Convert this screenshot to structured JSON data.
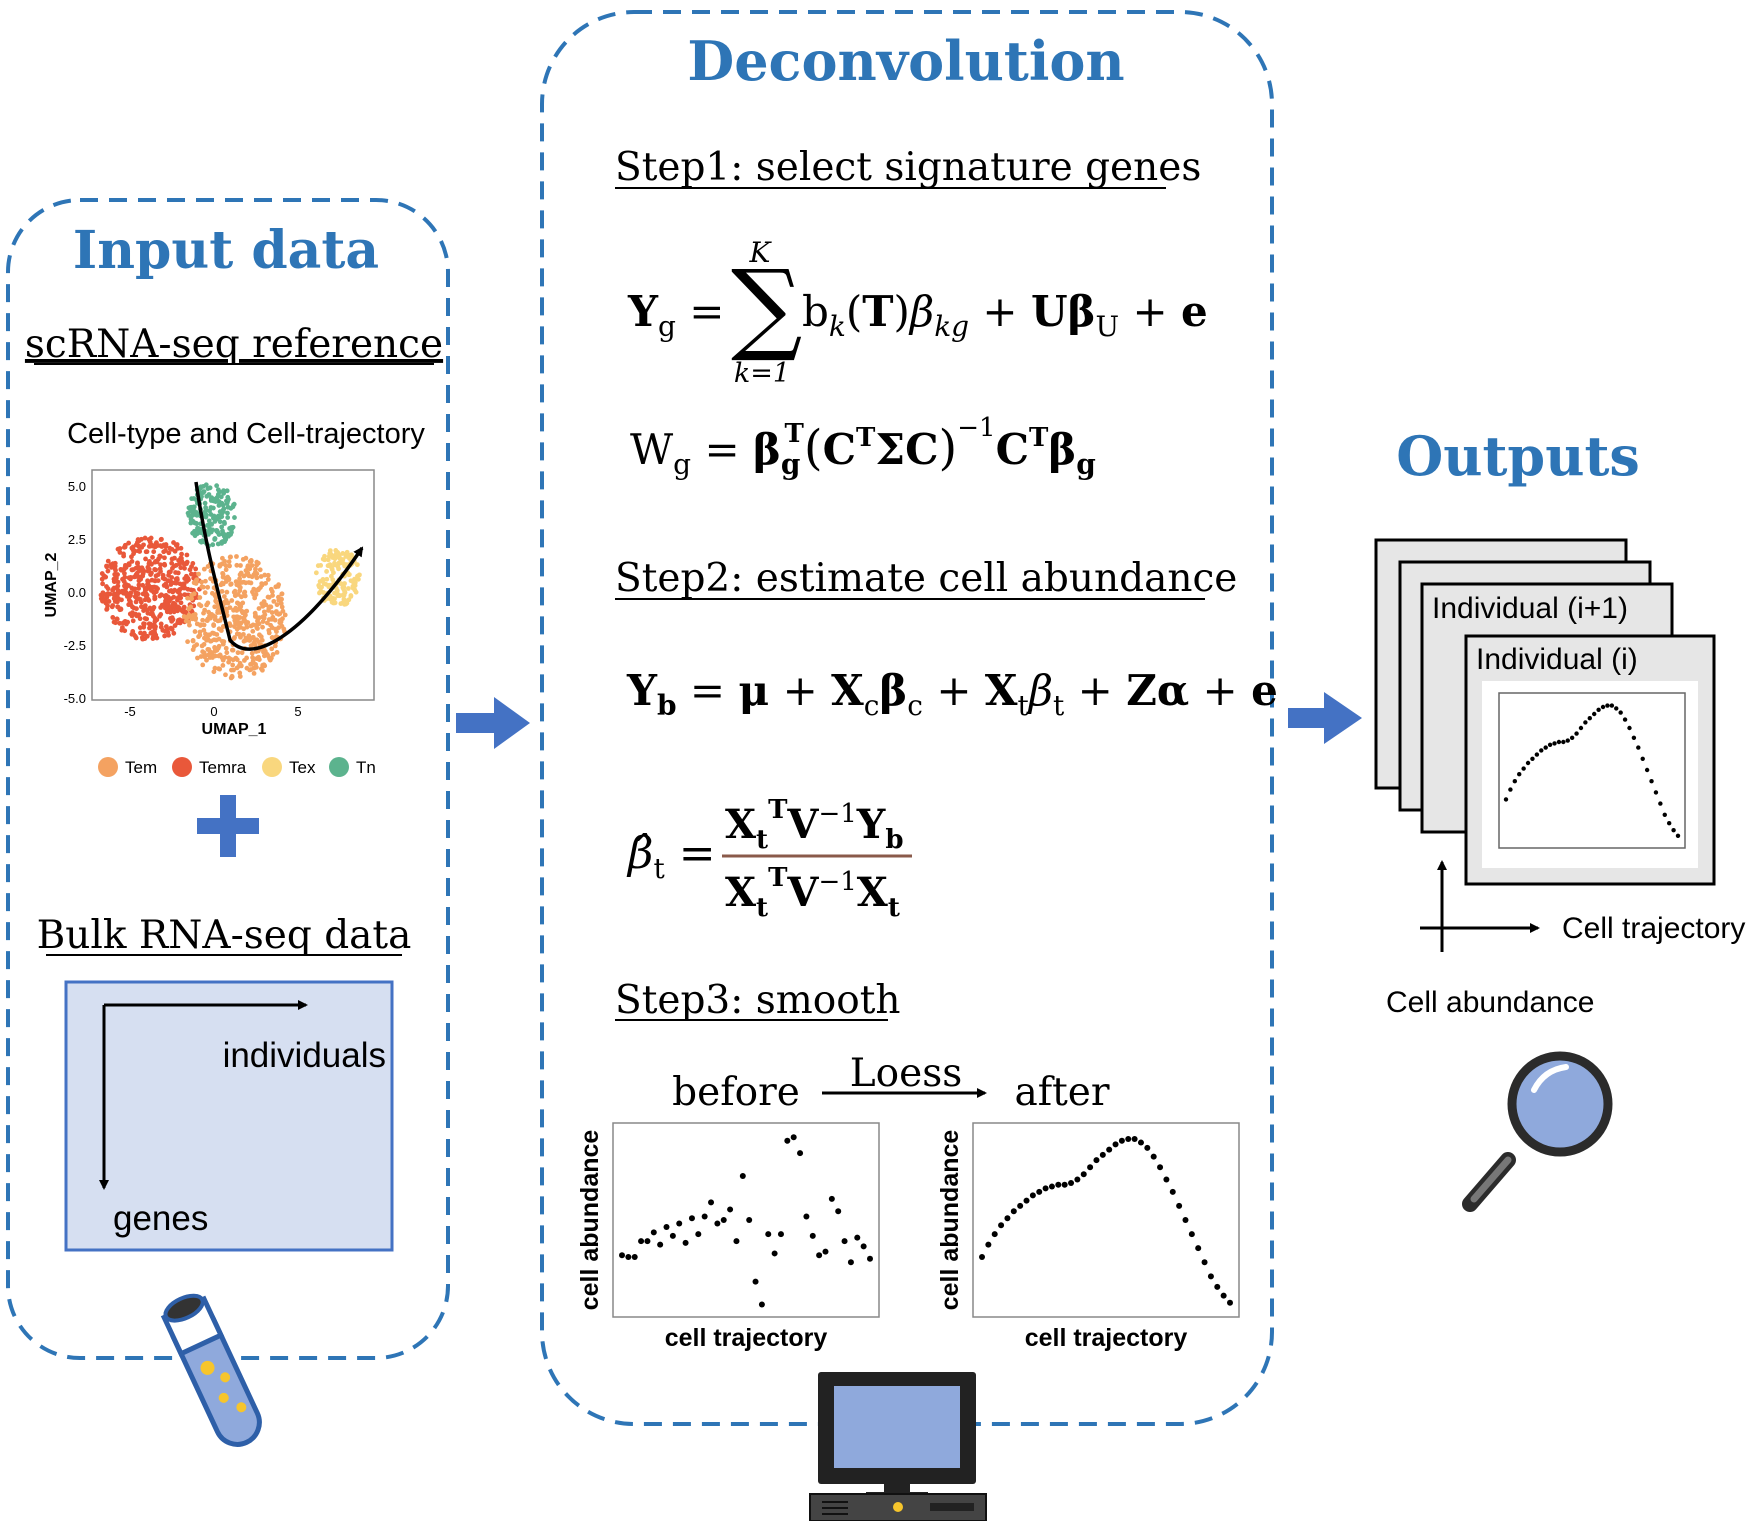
{
  "input_panel": {
    "title": "Input data",
    "sc_heading": "scRNA-seq reference",
    "umap": {
      "caption": "Cell-type and Cell-trajectory",
      "xlabel": "UMAP_1",
      "ylabel": "UMAP_2",
      "xticks": [
        "-5",
        "0",
        "5"
      ],
      "yticks": [
        "5.0",
        "2.5",
        "0.0",
        "-2.5",
        "-5.0"
      ],
      "legend": [
        {
          "label": "Tem",
          "color": "#f4a261"
        },
        {
          "label": "Temra",
          "color": "#e9583a"
        },
        {
          "label": "Tex",
          "color": "#f9d77e"
        },
        {
          "label": "Tn",
          "color": "#5cb38e"
        }
      ]
    },
    "plus_symbol": "+",
    "bulk_heading": "Bulk RNA-seq data",
    "bulk_box": {
      "cols_label": "individuals",
      "rows_label": "genes"
    }
  },
  "deconv_panel": {
    "title": "Deconvolution",
    "step1": {
      "heading": "Step1: select signature genes",
      "eq1": {
        "lhs": "Y",
        "lhs_sub": "g",
        "sum_top": "K",
        "sum_bottom": "k=1",
        "rhs": "b_k(T)β_kg + Uβ_U + e"
      },
      "eq2": {
        "lhs": "W",
        "lhs_sub": "g",
        "rhs": "β_g^T(C^TΣC)^-1 C^T β_g"
      }
    },
    "step2": {
      "heading": "Step2: estimate cell abundance",
      "eq3": "Y_b = μ + X_c β_c + X_t β_t + Zα + e",
      "eq4": "β̂_t = X_t^T V^-1 Y_b / X_t^T V^-1 X_t"
    },
    "step3": {
      "heading": "Step3: smooth",
      "before_label": "before",
      "method_label": "Loess",
      "after_label": "after",
      "plot_xlabel": "cell trajectory",
      "plot_ylabel": "cell abundance"
    }
  },
  "outputs_panel": {
    "title": "Outputs",
    "card_back_label": "Individual (i+1)",
    "card_front_label": "Individual (i)",
    "x_axis_label": "Cell trajectory",
    "y_axis_label": "Cell abundance"
  },
  "colors": {
    "accent_blue": "#2e75b6",
    "arrow_blue": "#4472c4",
    "bulk_fill": "#d6dff1",
    "card_fill": "#e6e6e6"
  },
  "icons": [
    "test-tube-icon",
    "computer-icon",
    "magnifier-icon",
    "plus-icon"
  ],
  "chart_data": [
    {
      "type": "scatter",
      "title": "before",
      "xlabel": "cell trajectory",
      "ylabel": "cell abundance",
      "x": [
        1,
        2,
        3,
        4,
        5,
        6,
        7,
        8,
        9,
        10,
        11,
        12,
        13,
        14,
        15,
        16,
        17,
        18,
        19,
        20,
        21,
        22,
        23,
        24,
        25,
        26,
        27,
        28,
        29,
        30,
        31,
        32,
        33,
        34,
        35,
        36,
        37,
        38,
        39,
        40
      ],
      "y": [
        0.3,
        0.29,
        0.29,
        0.38,
        0.38,
        0.43,
        0.36,
        0.46,
        0.41,
        0.48,
        0.37,
        0.51,
        0.42,
        0.52,
        0.6,
        0.48,
        0.5,
        0.56,
        0.38,
        0.75,
        0.5,
        0.15,
        0.02,
        0.42,
        0.31,
        0.42,
        0.95,
        0.97,
        0.88,
        0.52,
        0.41,
        0.3,
        0.32,
        0.62,
        0.55,
        0.38,
        0.26,
        0.4,
        0.35,
        0.28
      ]
    },
    {
      "type": "scatter",
      "title": "after",
      "xlabel": "cell trajectory",
      "ylabel": "cell abundance",
      "x": [
        1,
        2,
        3,
        4,
        5,
        6,
        7,
        8,
        9,
        10,
        11,
        12,
        13,
        14,
        15,
        16,
        17,
        18,
        19,
        20,
        21,
        22,
        23,
        24,
        25,
        26,
        27,
        28,
        29,
        30,
        31,
        32,
        33,
        34,
        35,
        36,
        37,
        38,
        39,
        40
      ],
      "y": [
        0.29,
        0.36,
        0.42,
        0.47,
        0.51,
        0.55,
        0.58,
        0.61,
        0.64,
        0.66,
        0.68,
        0.69,
        0.7,
        0.7,
        0.71,
        0.73,
        0.76,
        0.8,
        0.84,
        0.87,
        0.9,
        0.93,
        0.95,
        0.96,
        0.96,
        0.94,
        0.91,
        0.86,
        0.8,
        0.73,
        0.66,
        0.58,
        0.5,
        0.42,
        0.34,
        0.26,
        0.18,
        0.12,
        0.07,
        0.03
      ]
    }
  ]
}
